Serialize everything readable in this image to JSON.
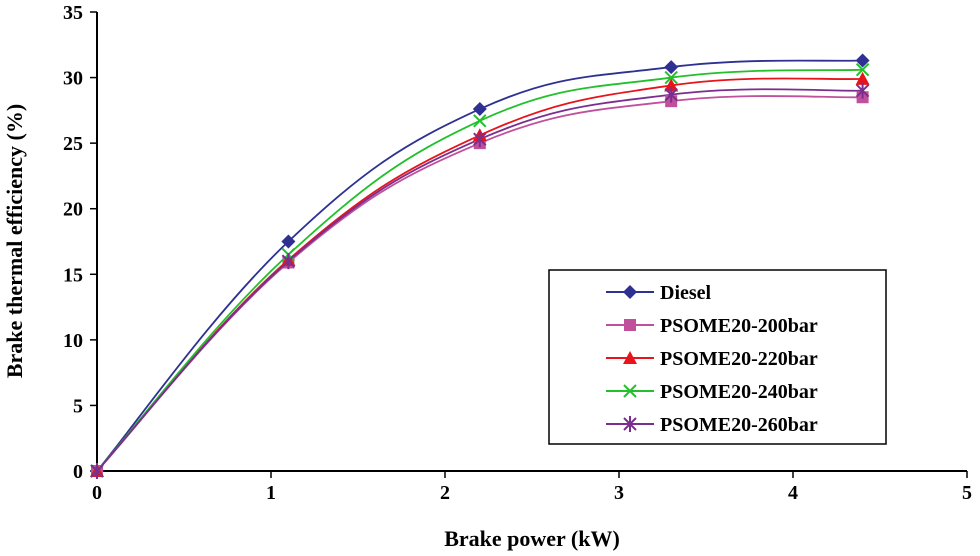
{
  "chart_data": {
    "type": "line",
    "title": "",
    "xlabel": "Brake power (kW)",
    "ylabel": "Brake thermal efficiency (%)",
    "xlim": [
      0,
      5
    ],
    "ylim": [
      0,
      35
    ],
    "xticks": [
      0,
      1,
      2,
      3,
      4,
      5
    ],
    "yticks": [
      0,
      5,
      10,
      15,
      20,
      25,
      30,
      35
    ],
    "grid": false,
    "legend_position": "bottom-right",
    "x": [
      0,
      1.1,
      2.2,
      3.3,
      4.4
    ],
    "series": [
      {
        "name": "Diesel",
        "marker": "diamond",
        "color": "#2E3192",
        "values": [
          0,
          17.5,
          27.6,
          30.8,
          31.3
        ]
      },
      {
        "name": "PSOME20-200bar",
        "marker": "square",
        "color": "#C0509C",
        "values": [
          0,
          15.9,
          25.0,
          28.2,
          28.5
        ]
      },
      {
        "name": "PSOME20-220bar",
        "marker": "triangle",
        "color": "#E8141C",
        "values": [
          0,
          16.1,
          25.6,
          29.4,
          29.9
        ]
      },
      {
        "name": "PSOME20-240bar",
        "marker": "x",
        "color": "#22C02A",
        "values": [
          0,
          16.5,
          26.7,
          30.0,
          30.6
        ]
      },
      {
        "name": "PSOME20-260bar",
        "marker": "star",
        "color": "#7A2E8E",
        "values": [
          0,
          16.0,
          25.3,
          28.7,
          29.0
        ]
      }
    ]
  }
}
